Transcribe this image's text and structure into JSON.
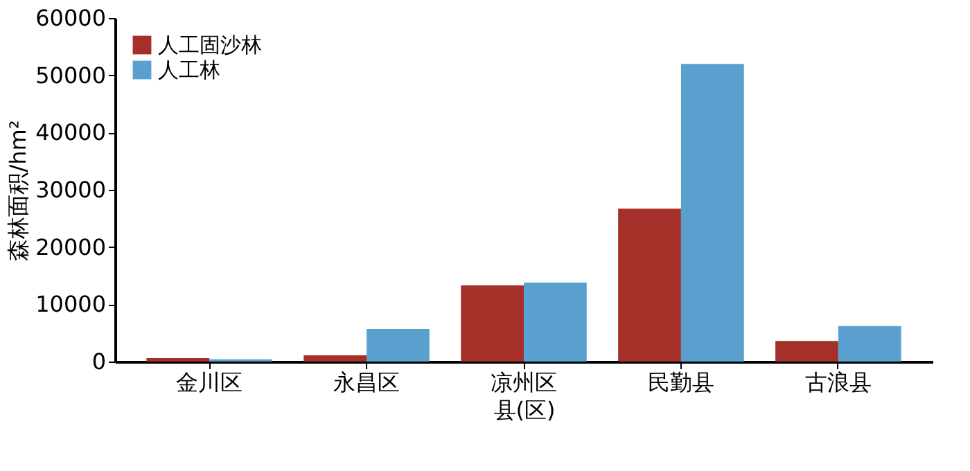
{
  "chart_data": {
    "type": "bar",
    "xlabel": "县(区)",
    "ylabel": "森林面积/hm²",
    "categories": [
      "金川区",
      "永昌区",
      "凉州区",
      "民勤县",
      "古浪县"
    ],
    "series": [
      {
        "name": "人工固沙林",
        "color": "#a5302a",
        "values": [
          600,
          1100,
          13300,
          26700,
          3600
        ]
      },
      {
        "name": "人工林",
        "color": "#5aa0cf",
        "values": [
          400,
          5700,
          13800,
          52000,
          6200
        ]
      }
    ],
    "ylim": [
      0,
      60000
    ],
    "yticks": [
      0,
      10000,
      20000,
      30000,
      40000,
      50000,
      60000
    ],
    "grid": false,
    "legend": "top left"
  }
}
